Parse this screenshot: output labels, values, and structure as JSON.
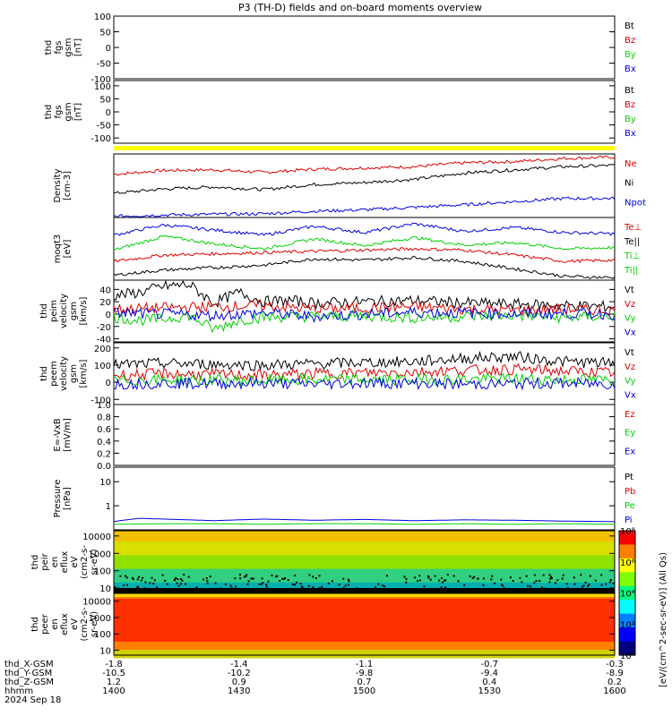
{
  "title": "P3 (TH-D) fields and on-board moments overview",
  "colors": {
    "black": "#000000",
    "red": "#e00000",
    "green": "#00d000",
    "blue": "#0000e0",
    "yellow": "#ffff00"
  },
  "chart_data": {
    "type": "line",
    "x_range": [
      1400,
      1600
    ],
    "panels": [
      {
        "id": "fgs-gsm-nt",
        "ylabel": [
          "thd",
          "fgs",
          "gsm",
          "[nT]"
        ],
        "type": "line",
        "ylim": [
          -100,
          100
        ],
        "ticks": [
          "100",
          "50",
          "0",
          "-50",
          "-100"
        ],
        "tick_values": [
          100,
          50,
          0,
          -50,
          -100
        ],
        "legend": [
          {
            "label": "Bt",
            "color": "black"
          },
          {
            "label": "Bz",
            "color": "red"
          },
          {
            "label": "By",
            "color": "green"
          },
          {
            "label": "Bx",
            "color": "blue"
          }
        ],
        "series": []
      },
      {
        "id": "fgs-gsm-nt-2",
        "ylabel": [
          "thd",
          "fgs",
          "gsm",
          "[nT]"
        ],
        "type": "line",
        "ylim": [
          -120,
          120
        ],
        "ticks": [
          "100",
          "50",
          "0",
          "-50",
          "-100"
        ],
        "tick_values": [
          100,
          50,
          0,
          -50,
          -100
        ],
        "legend": [
          {
            "label": "Bt",
            "color": "black"
          },
          {
            "label": "Bz",
            "color": "red"
          },
          {
            "label": "By",
            "color": "green"
          },
          {
            "label": "Bx",
            "color": "blue"
          }
        ],
        "series": []
      },
      {
        "id": "density",
        "ylabel": [
          "Density",
          "[cm-3]"
        ],
        "type": "line",
        "ylim": [
          0,
          1
        ],
        "ticks": [],
        "tick_values": [],
        "legend": [
          {
            "label": "Ne",
            "color": "red"
          },
          {
            "label": "Ni",
            "color": "black"
          },
          {
            "label": "Npot",
            "color": "blue"
          }
        ],
        "series": [
          {
            "color": "red",
            "x": [
              1400,
              1420,
              1440,
              1460,
              1480,
              1500,
              1520,
              1540,
              1560,
              1580,
              1600
            ],
            "values": [
              0.68,
              0.74,
              0.75,
              0.71,
              0.76,
              0.78,
              0.8,
              0.86,
              0.88,
              0.93,
              0.95
            ]
          },
          {
            "color": "black",
            "x": [
              1400,
              1420,
              1440,
              1460,
              1480,
              1500,
              1520,
              1540,
              1560,
              1580,
              1600
            ],
            "values": [
              0.38,
              0.45,
              0.48,
              0.44,
              0.52,
              0.55,
              0.6,
              0.7,
              0.75,
              0.8,
              0.82
            ]
          },
          {
            "color": "blue",
            "x": [
              1400,
              1420,
              1440,
              1460,
              1480,
              1500,
              1520,
              1540,
              1560,
              1580,
              1600
            ],
            "values": [
              0.02,
              0.04,
              0.05,
              0.06,
              0.1,
              0.12,
              0.16,
              0.2,
              0.25,
              0.3,
              0.3
            ]
          }
        ]
      },
      {
        "id": "temperature",
        "ylabel": [
          "moqt3",
          "[eV]"
        ],
        "type": "line",
        "ylim": [
          0,
          1
        ],
        "ticks": [],
        "tick_values": [],
        "legend": [
          {
            "label": "Te⊥",
            "color": "red"
          },
          {
            "label": "Te||",
            "color": "black"
          },
          {
            "label": "Ti⊥",
            "color": "green"
          },
          {
            "label": "Ti||",
            "color": "green"
          }
        ],
        "series": [
          {
            "color": "blue",
            "x": [
              1400,
              1420,
              1440,
              1460,
              1480,
              1500,
              1520,
              1540,
              1560,
              1580,
              1600
            ],
            "values": [
              0.72,
              0.88,
              0.8,
              0.72,
              0.86,
              0.76,
              0.9,
              0.78,
              0.84,
              0.76,
              0.74
            ]
          },
          {
            "color": "green",
            "x": [
              1400,
              1420,
              1440,
              1460,
              1480,
              1500,
              1520,
              1540,
              1560,
              1580,
              1600
            ],
            "values": [
              0.48,
              0.7,
              0.58,
              0.5,
              0.66,
              0.55,
              0.68,
              0.56,
              0.6,
              0.5,
              0.52
            ]
          },
          {
            "color": "red",
            "x": [
              1400,
              1420,
              1440,
              1460,
              1480,
              1500,
              1520,
              1540,
              1560,
              1580,
              1600
            ],
            "values": [
              0.3,
              0.4,
              0.42,
              0.44,
              0.46,
              0.48,
              0.5,
              0.48,
              0.4,
              0.3,
              0.32
            ]
          },
          {
            "color": "black",
            "x": [
              1400,
              1420,
              1440,
              1460,
              1480,
              1500,
              1520,
              1540,
              1560,
              1580,
              1600
            ],
            "values": [
              0.08,
              0.16,
              0.2,
              0.24,
              0.34,
              0.32,
              0.36,
              0.3,
              0.18,
              0.06,
              0.04
            ]
          }
        ]
      },
      {
        "id": "peim-velocity",
        "ylabel": [
          "thd",
          "peim",
          "velocity",
          "gsm",
          "[km/s]"
        ],
        "type": "line",
        "ylim": [
          -45,
          55
        ],
        "ticks": [
          "40",
          "20",
          "0",
          "-20",
          "-40"
        ],
        "tick_values": [
          40,
          20,
          0,
          -20,
          -40
        ],
        "legend": [
          {
            "label": "Vt",
            "color": "black"
          },
          {
            "label": "Vz",
            "color": "red"
          },
          {
            "label": "Vy",
            "color": "green"
          },
          {
            "label": "Vx",
            "color": "blue"
          }
        ],
        "series": [
          {
            "color": "black",
            "x": [
              1400,
              1410,
              1420,
              1430,
              1440,
              1450,
              1460,
              1470,
              1480,
              1500,
              1520,
              1540,
              1560,
              1580,
              1600
            ],
            "values": [
              30,
              35,
              45,
              48,
              18,
              35,
              20,
              22,
              18,
              20,
              22,
              18,
              16,
              14,
              12
            ]
          },
          {
            "color": "red",
            "x": [
              1400,
              1420,
              1440,
              1460,
              1480,
              1500,
              1520,
              1540,
              1560,
              1580,
              1600
            ],
            "values": [
              8,
              10,
              12,
              14,
              8,
              10,
              12,
              8,
              6,
              8,
              6
            ]
          },
          {
            "color": "green",
            "x": [
              1400,
              1410,
              1420,
              1430,
              1440,
              1450,
              1460,
              1480,
              1500,
              1520,
              1540,
              1560,
              1580,
              1600
            ],
            "values": [
              -5,
              -10,
              -8,
              -2,
              -25,
              -10,
              -5,
              -4,
              -3,
              -6,
              -4,
              -2,
              -6,
              -3
            ]
          },
          {
            "color": "blue",
            "x": [
              1400,
              1420,
              1440,
              1460,
              1480,
              1500,
              1520,
              1540,
              1560,
              1580,
              1600
            ],
            "values": [
              2,
              0,
              -2,
              2,
              -4,
              0,
              3,
              2,
              0,
              1,
              0
            ]
          }
        ]
      },
      {
        "id": "peem-velocity",
        "ylabel": [
          "thd",
          "peem",
          "velocity",
          "gsm",
          "[km/s]"
        ],
        "type": "line",
        "ylim": [
          -130,
          230
        ],
        "ticks": [
          "200",
          "100",
          "0",
          "-100"
        ],
        "tick_values": [
          200,
          100,
          0,
          -100
        ],
        "legend": [
          {
            "label": "Vt",
            "color": "black"
          },
          {
            "label": "Vz",
            "color": "red"
          },
          {
            "label": "Vy",
            "color": "green"
          },
          {
            "label": "Vx",
            "color": "blue"
          }
        ],
        "series": [
          {
            "color": "black",
            "x": [
              1400,
              1420,
              1440,
              1460,
              1480,
              1500,
              1520,
              1540,
              1560,
              1580,
              1600
            ],
            "values": [
              100,
              110,
              105,
              100,
              108,
              115,
              120,
              140,
              150,
              120,
              110
            ]
          },
          {
            "color": "red",
            "x": [
              1400,
              1420,
              1440,
              1460,
              1480,
              1500,
              1520,
              1540,
              1560,
              1580,
              1600
            ],
            "values": [
              40,
              50,
              45,
              40,
              50,
              55,
              60,
              70,
              75,
              65,
              55
            ]
          },
          {
            "color": "green",
            "x": [
              1400,
              1420,
              1440,
              1460,
              1480,
              1500,
              1520,
              1540,
              1560,
              1580,
              1600
            ],
            "values": [
              10,
              15,
              12,
              10,
              14,
              16,
              15,
              18,
              20,
              16,
              12
            ]
          },
          {
            "color": "blue",
            "x": [
              1400,
              1420,
              1440,
              1460,
              1480,
              1500,
              1520,
              1540,
              1560,
              1580,
              1600
            ],
            "values": [
              -10,
              -5,
              -8,
              -6,
              -10,
              -4,
              -6,
              -12,
              -8,
              -6,
              -10
            ]
          }
        ]
      },
      {
        "id": "efield",
        "ylabel": [
          "E=-VxB",
          "[mV/m]"
        ],
        "type": "line",
        "ylim": [
          0,
          1
        ],
        "ticks": [
          "1.0",
          "0.8",
          "0.6",
          "0.4",
          "0.2",
          "0.0"
        ],
        "tick_values": [
          1,
          0.8,
          0.6,
          0.4,
          0.2,
          0
        ],
        "legend": [
          {
            "label": "Ez",
            "color": "red"
          },
          {
            "label": "Ey",
            "color": "green"
          },
          {
            "label": "Ex",
            "color": "blue"
          }
        ],
        "series": []
      },
      {
        "id": "pressure",
        "ylabel": [
          "Pressure",
          "[nPa]"
        ],
        "type": "line",
        "ylim": [
          0.1,
          40
        ],
        "log": true,
        "ticks": [
          "10",
          "1"
        ],
        "tick_values": [
          10,
          1
        ],
        "legend": [
          {
            "label": "Pt",
            "color": "black"
          },
          {
            "label": "Pb",
            "color": "red"
          },
          {
            "label": "Pe",
            "color": "green"
          },
          {
            "label": "Pi",
            "color": "blue"
          }
        ],
        "series": [
          {
            "color": "blue",
            "x": [
              1400,
              1410,
              1420,
              1440,
              1460,
              1480,
              1500,
              1520,
              1540,
              1560,
              1580,
              1600
            ],
            "values": [
              0.22,
              0.3,
              0.28,
              0.24,
              0.28,
              0.25,
              0.27,
              0.24,
              0.26,
              0.25,
              0.23,
              0.22
            ]
          },
          {
            "color": "green",
            "x": [
              1400,
              1420,
              1440,
              1460,
              1480,
              1500,
              1520,
              1540,
              1560,
              1580,
              1600
            ],
            "values": [
              0.17,
              0.18,
              0.18,
              0.17,
              0.18,
              0.18,
              0.17,
              0.18,
              0.17,
              0.18,
              0.17
            ]
          }
        ]
      },
      {
        "id": "peir-spectrogram",
        "ylabel": [
          "thd",
          "peir",
          "en",
          "eflux",
          "eV",
          "(cm2-s-",
          "sr-eV)"
        ],
        "type": "heatmap",
        "ylim": [
          5,
          20000
        ],
        "log": true,
        "ticks": [
          "10000",
          "1000",
          "100",
          "10"
        ],
        "tick_values": [
          10000,
          1000,
          100,
          10
        ],
        "legend": [],
        "series": []
      },
      {
        "id": "peer-spectrogram",
        "ylabel": [
          "thd",
          "peer",
          "en",
          "eflux",
          "eV",
          "(cm2-s-",
          "sr-eV)"
        ],
        "type": "heatmap",
        "ylim": [
          5,
          30000
        ],
        "log": true,
        "ticks": [
          "10000",
          "1000",
          "100",
          "10"
        ],
        "tick_values": [
          10000,
          1000,
          100,
          10
        ],
        "legend": [],
        "series": []
      }
    ],
    "x_ticks": {
      "rows": [
        {
          "label": "thd_X-GSM",
          "values": [
            "-1.8",
            "-1.4",
            "-1.1",
            "-0.7",
            "-0.3"
          ]
        },
        {
          "label": "thd_Y-GSM",
          "values": [
            "-10.5",
            "-10.2",
            "-9.8",
            "-9.4",
            "-8.9"
          ]
        },
        {
          "label": "thd_Z-GSM",
          "values": [
            "1.2",
            "0.9",
            "0.7",
            "0.4",
            "0.2"
          ]
        },
        {
          "label": "hhmm",
          "values": [
            "1400",
            "1430",
            "1500",
            "1530",
            "1600"
          ]
        }
      ],
      "date": "2024 Sep 18"
    },
    "colorbar": {
      "label": "[eV/(cm^2-sec-sr-eV)] (All Qs)",
      "ticks": [
        "10⁸",
        "10⁶",
        "10⁴",
        "10²",
        "10⁰"
      ],
      "tick_values": [
        8,
        6,
        4,
        2,
        0
      ]
    }
  }
}
